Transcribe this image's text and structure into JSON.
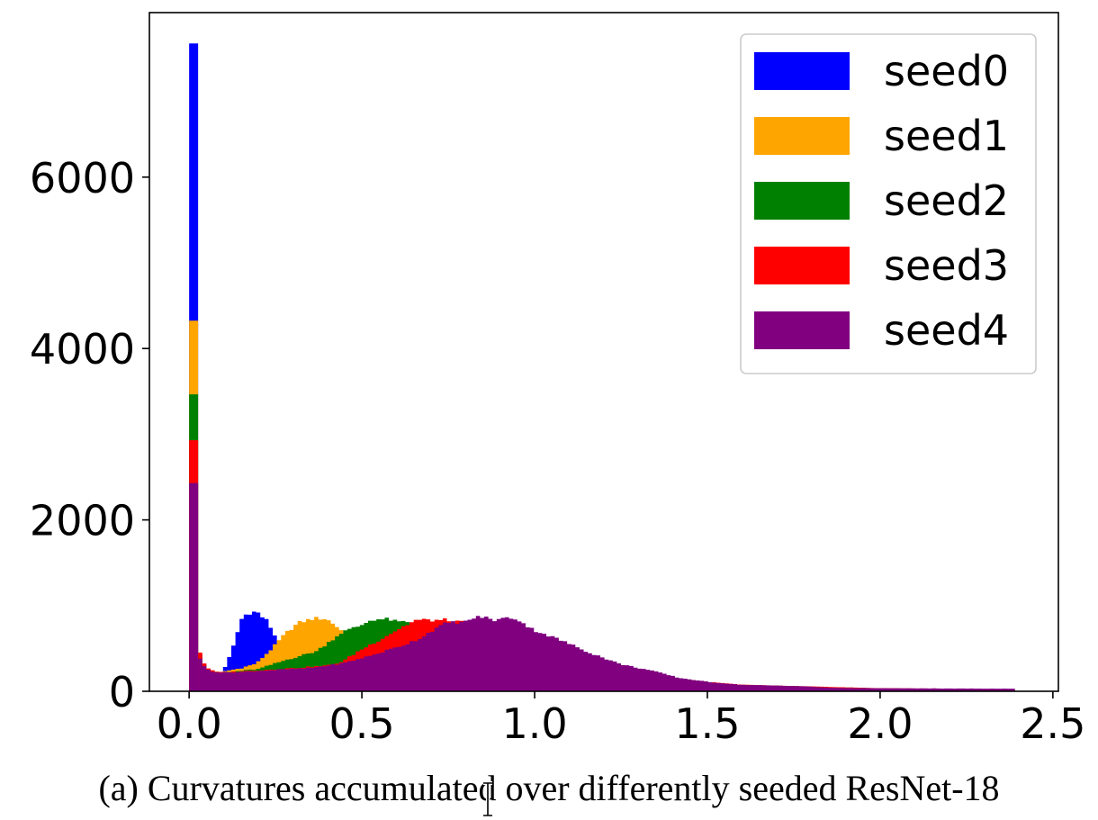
{
  "chart_data": {
    "type": "bar",
    "subtype": "histogram",
    "title": "",
    "xlabel": "",
    "ylabel": "",
    "xlim": [
      -0.115,
      2.516
    ],
    "ylim": [
      0,
      7920
    ],
    "xticks": [
      0.0,
      0.5,
      1.0,
      1.5,
      2.0,
      2.5
    ],
    "xtick_labels": [
      "0.0",
      "0.5",
      "1.0",
      "1.5",
      "2.0",
      "2.5"
    ],
    "yticks": [
      0,
      2000,
      4000,
      6000
    ],
    "ytick_labels": [
      "0",
      "2000",
      "4000",
      "6000"
    ],
    "grid": false,
    "legend_position": "top-right",
    "bin_width": 0.012,
    "x_max": 2.39,
    "series": [
      {
        "name": "seed0",
        "color": "#0000ff",
        "first_bin_count": 7560,
        "points": [
          [
            0.026,
            520
          ],
          [
            0.04,
            330
          ],
          [
            0.06,
            240
          ],
          [
            0.085,
            215
          ],
          [
            0.1,
            240
          ],
          [
            0.125,
            500
          ],
          [
            0.15,
            815
          ],
          [
            0.17,
            910
          ],
          [
            0.2,
            905
          ],
          [
            0.227,
            815
          ],
          [
            0.255,
            590
          ],
          [
            0.29,
            430
          ],
          [
            0.33,
            360
          ],
          [
            0.4,
            330
          ],
          [
            0.5,
            330
          ],
          [
            0.6,
            420
          ],
          [
            0.7,
            560
          ],
          [
            0.8,
            700
          ],
          [
            0.9,
            760
          ],
          [
            1.0,
            640
          ],
          [
            1.1,
            480
          ],
          [
            1.2,
            340
          ],
          [
            1.3,
            230
          ],
          [
            1.4,
            150
          ],
          [
            1.5,
            100
          ],
          [
            1.6,
            70
          ],
          [
            1.8,
            50
          ],
          [
            2.0,
            30
          ],
          [
            2.39,
            20
          ]
        ]
      },
      {
        "name": "seed1",
        "color": "#ffa500",
        "first_bin_count": 4325,
        "points": [
          [
            0.026,
            500
          ],
          [
            0.04,
            330
          ],
          [
            0.06,
            240
          ],
          [
            0.085,
            215
          ],
          [
            0.11,
            240
          ],
          [
            0.15,
            270
          ],
          [
            0.195,
            325
          ],
          [
            0.24,
            500
          ],
          [
            0.28,
            680
          ],
          [
            0.317,
            800
          ],
          [
            0.36,
            850
          ],
          [
            0.39,
            850
          ],
          [
            0.41,
            815
          ],
          [
            0.44,
            710
          ],
          [
            0.5,
            600
          ],
          [
            0.6,
            560
          ],
          [
            0.7,
            620
          ],
          [
            0.8,
            720
          ],
          [
            0.9,
            770
          ],
          [
            1.0,
            650
          ],
          [
            1.1,
            490
          ],
          [
            1.2,
            350
          ],
          [
            1.3,
            240
          ],
          [
            1.4,
            155
          ],
          [
            1.5,
            105
          ],
          [
            1.6,
            72
          ],
          [
            1.8,
            52
          ],
          [
            2.0,
            32
          ],
          [
            2.39,
            22
          ]
        ]
      },
      {
        "name": "seed2",
        "color": "#008000",
        "first_bin_count": 3465,
        "points": [
          [
            0.026,
            510
          ],
          [
            0.04,
            335
          ],
          [
            0.06,
            245
          ],
          [
            0.085,
            218
          ],
          [
            0.12,
            225
          ],
          [
            0.2,
            260
          ],
          [
            0.28,
            365
          ],
          [
            0.37,
            470
          ],
          [
            0.443,
            690
          ],
          [
            0.495,
            765
          ],
          [
            0.53,
            840
          ],
          [
            0.58,
            840
          ],
          [
            0.6,
            810
          ],
          [
            0.62,
            810
          ],
          [
            0.7,
            760
          ],
          [
            0.8,
            780
          ],
          [
            0.9,
            790
          ],
          [
            1.0,
            660
          ],
          [
            1.1,
            500
          ],
          [
            1.2,
            355
          ],
          [
            1.3,
            245
          ],
          [
            1.4,
            158
          ],
          [
            1.5,
            108
          ],
          [
            1.6,
            74
          ],
          [
            1.8,
            54
          ],
          [
            2.0,
            34
          ],
          [
            2.39,
            24
          ]
        ]
      },
      {
        "name": "seed3",
        "color": "#ff0000",
        "first_bin_count": 2930,
        "points": [
          [
            0.026,
            540
          ],
          [
            0.04,
            345
          ],
          [
            0.06,
            250
          ],
          [
            0.085,
            220
          ],
          [
            0.12,
            225
          ],
          [
            0.2,
            245
          ],
          [
            0.3,
            270
          ],
          [
            0.4,
            300
          ],
          [
            0.443,
            345
          ],
          [
            0.495,
            480
          ],
          [
            0.547,
            590
          ],
          [
            0.59,
            690
          ],
          [
            0.625,
            765
          ],
          [
            0.655,
            830
          ],
          [
            0.74,
            830
          ],
          [
            0.77,
            810
          ],
          [
            0.8,
            800
          ],
          [
            0.9,
            800
          ],
          [
            1.0,
            670
          ],
          [
            1.1,
            510
          ],
          [
            1.2,
            360
          ],
          [
            1.3,
            250
          ],
          [
            1.4,
            160
          ],
          [
            1.5,
            110
          ],
          [
            1.6,
            76
          ],
          [
            1.8,
            56
          ],
          [
            2.0,
            36
          ],
          [
            2.39,
            25
          ]
        ]
      },
      {
        "name": "seed4",
        "color": "#800080",
        "first_bin_count": 2430,
        "points": [
          [
            0.026,
            450
          ],
          [
            0.04,
            300
          ],
          [
            0.06,
            240
          ],
          [
            0.085,
            220
          ],
          [
            0.15,
            225
          ],
          [
            0.25,
            250
          ],
          [
            0.35,
            270
          ],
          [
            0.443,
            325
          ],
          [
            0.53,
            420
          ],
          [
            0.617,
            535
          ],
          [
            0.67,
            620
          ],
          [
            0.703,
            710
          ],
          [
            0.747,
            800
          ],
          [
            0.8,
            810
          ],
          [
            0.825,
            860
          ],
          [
            0.85,
            870
          ],
          [
            0.88,
            830
          ],
          [
            0.93,
            860
          ],
          [
            0.95,
            845
          ],
          [
            0.99,
            730
          ],
          [
            1.08,
            590
          ],
          [
            1.16,
            450
          ],
          [
            1.25,
            315
          ],
          [
            1.34,
            240
          ],
          [
            1.42,
            155
          ],
          [
            1.51,
            105
          ],
          [
            1.6,
            75
          ],
          [
            1.77,
            60
          ],
          [
            1.86,
            40
          ],
          [
            2.0,
            35
          ],
          [
            2.39,
            30
          ]
        ]
      }
    ]
  },
  "caption": "(a) Curvatures accumulated over differently seeded ResNet-18"
}
